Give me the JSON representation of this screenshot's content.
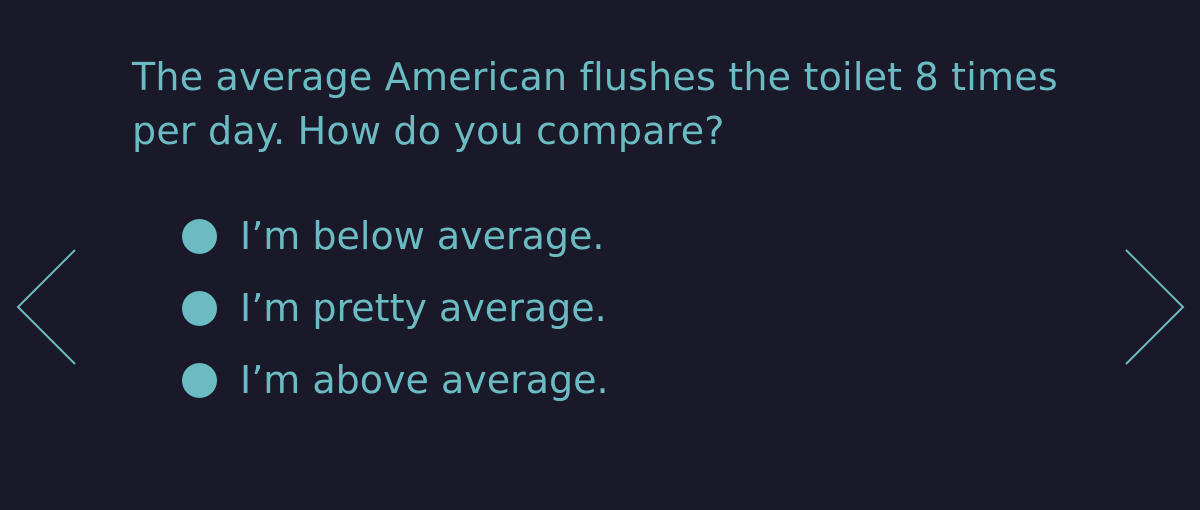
{
  "question": {
    "text": "The average American flushes the toilet 8 times per day. How do you compare?"
  },
  "options": [
    {
      "label": "I’m below average."
    },
    {
      "label": "I’m pretty average."
    },
    {
      "label": "I’m above average."
    }
  ],
  "navigation": {
    "prev_icon": "chevron-left-icon",
    "next_icon": "chevron-right-icon"
  },
  "colors": {
    "background": "#1a1929",
    "accent": "#6bbcc2"
  }
}
